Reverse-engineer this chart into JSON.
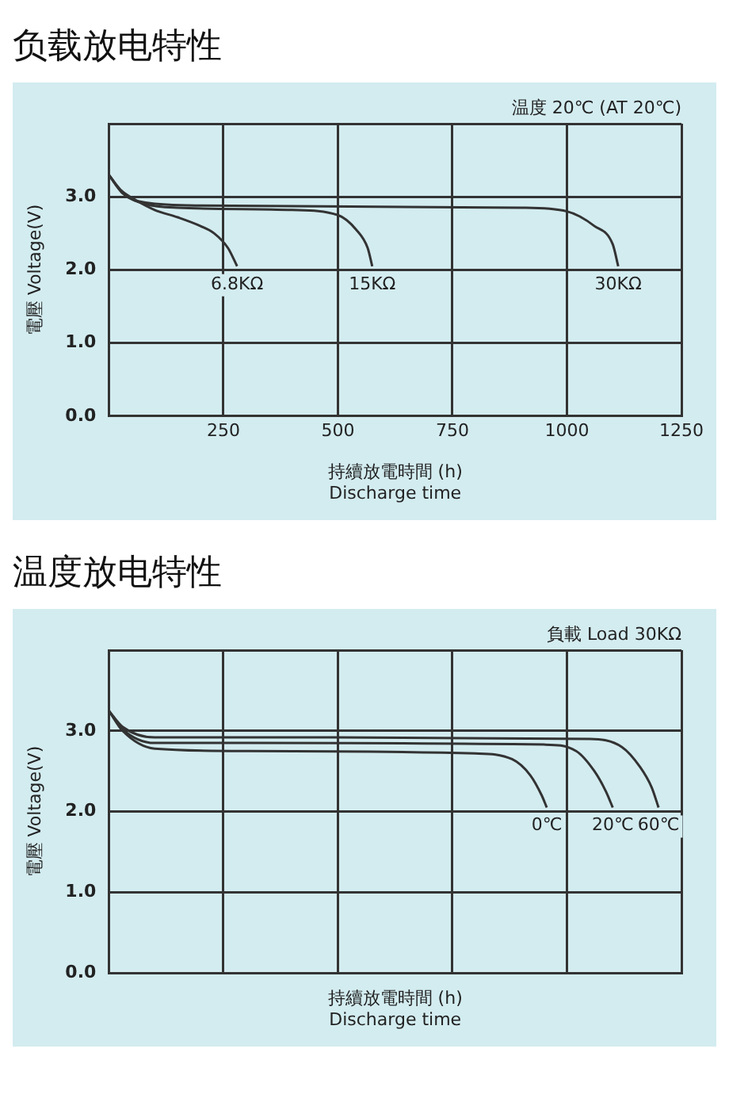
{
  "chart_data": [
    {
      "type": "line",
      "title": "负载放电特性",
      "xlabel": "持續放電時間 (h)\nDischarge time",
      "ylabel": "電壓 Voltage(V)",
      "annotations": [
        "温度 20℃ (AT 20℃)"
      ],
      "xlim": [
        0,
        1250
      ],
      "xticks": [
        250,
        500,
        750,
        1000,
        1250
      ],
      "ylim": [
        0,
        4
      ],
      "yticks": [
        {
          "value": 0,
          "label": "0.0"
        },
        {
          "value": 1,
          "label": "1.0"
        },
        {
          "value": 2,
          "label": "2.0"
        },
        {
          "value": 3,
          "label": "3.0"
        },
        {
          "value": 4,
          "label": null
        }
      ],
      "grid": true,
      "legend": false,
      "marker": "none",
      "line_style": "solid",
      "series": [
        {
          "name": "6.8KΩ",
          "color": "#333333",
          "x": [
            0,
            25,
            60,
            100,
            150,
            200,
            230,
            260,
            280
          ],
          "values": [
            3.3,
            3.1,
            2.95,
            2.82,
            2.72,
            2.6,
            2.5,
            2.3,
            2.05
          ]
        },
        {
          "name": "15KΩ",
          "color": "#333333",
          "x": [
            0,
            30,
            80,
            150,
            400,
            500,
            540,
            565,
            575
          ],
          "values": [
            3.3,
            3.05,
            2.9,
            2.85,
            2.82,
            2.75,
            2.55,
            2.3,
            2.05
          ]
        },
        {
          "name": "30KΩ",
          "color": "#333333",
          "x": [
            0,
            30,
            80,
            200,
            900,
            1000,
            1060,
            1100,
            1112
          ],
          "values": [
            3.3,
            3.05,
            2.92,
            2.88,
            2.85,
            2.8,
            2.6,
            2.35,
            2.05
          ]
        }
      ]
    },
    {
      "type": "line",
      "title": "温度放电特性",
      "xlabel": "持續放電時間 (h)\nDischarge time",
      "ylabel": "電壓 Voltage(V)",
      "annotations": [
        "負載 Load 30KΩ"
      ],
      "xlim": [
        0,
        1250
      ],
      "xticks": [
        250,
        500,
        750,
        1000,
        1250
      ],
      "tick_labels": "y",
      "ylim": [
        0,
        4
      ],
      "yticks": [
        {
          "value": 0,
          "label": "0.0"
        },
        {
          "value": 1,
          "label": "1.0"
        },
        {
          "value": 2,
          "label": "2.0"
        },
        {
          "value": 3,
          "label": "3.0"
        },
        {
          "value": 4,
          "label": null
        }
      ],
      "grid": true,
      "legend": false,
      "marker": "none",
      "line_style": "solid",
      "series": [
        {
          "name": "0℃",
          "color": "#333333",
          "x": [
            0,
            30,
            100,
            300,
            800,
            880,
            920,
            945,
            956
          ],
          "values": [
            3.25,
            3.0,
            2.78,
            2.75,
            2.72,
            2.65,
            2.45,
            2.2,
            2.05
          ]
        },
        {
          "name": "20℃",
          "color": "#333333",
          "x": [
            0,
            30,
            100,
            300,
            950,
            1020,
            1060,
            1085,
            1100
          ],
          "values": [
            3.25,
            3.02,
            2.85,
            2.85,
            2.83,
            2.75,
            2.5,
            2.25,
            2.05
          ]
        },
        {
          "name": "60℃",
          "color": "#333333",
          "x": [
            0,
            30,
            100,
            300,
            1050,
            1120,
            1160,
            1185,
            1200
          ],
          "values": [
            3.25,
            3.05,
            2.92,
            2.92,
            2.9,
            2.8,
            2.55,
            2.3,
            2.05
          ]
        }
      ]
    }
  ]
}
